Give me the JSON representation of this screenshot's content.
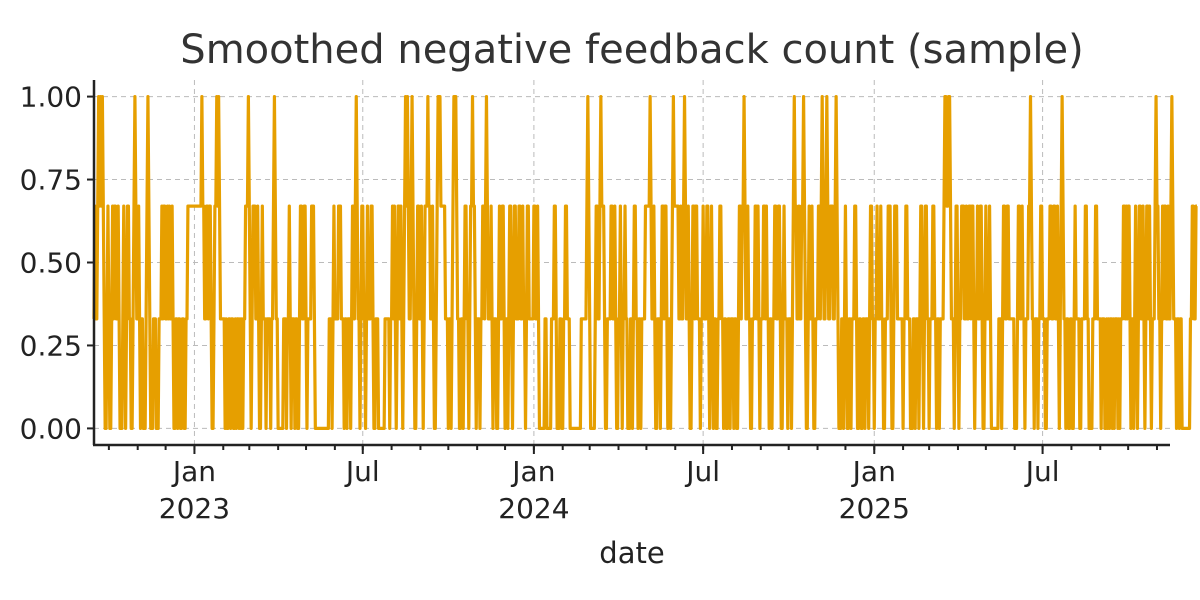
{
  "chart_data": {
    "type": "line",
    "title": "Smoothed negative feedback count (sample)",
    "xlabel": "date",
    "ylabel": "",
    "xlim": [
      "2022-09-15",
      "2025-11-15"
    ],
    "ylim": [
      -0.05,
      1.05
    ],
    "y_ticks": [
      0.0,
      0.25,
      0.5,
      0.75,
      1.0
    ],
    "y_tick_labels": [
      "0.00",
      "0.25",
      "0.50",
      "0.75",
      "1.00"
    ],
    "x_ticks": [
      {
        "date": "2023-01-01",
        "label": "Jan",
        "sublabel": "2023"
      },
      {
        "date": "2023-07-01",
        "label": "Jul",
        "sublabel": ""
      },
      {
        "date": "2024-01-01",
        "label": "Jan",
        "sublabel": "2024"
      },
      {
        "date": "2024-07-01",
        "label": "Jul",
        "sublabel": ""
      },
      {
        "date": "2025-01-01",
        "label": "Jan",
        "sublabel": "2025"
      },
      {
        "date": "2025-07-01",
        "label": "Jul",
        "sublabel": ""
      }
    ],
    "grid": true,
    "series": [
      {
        "name": "",
        "color": "#E69F00",
        "frequency": "daily",
        "start": "2022-09-15",
        "values": [
          0.33,
          0.67,
          0.33,
          0.33,
          0.67,
          1,
          0.67,
          1,
          0.67,
          1,
          0.67,
          0.33,
          0,
          0,
          0.33,
          0.67,
          0.33,
          0,
          0,
          0.33,
          0.67,
          0.33,
          0.67,
          0.67,
          0.33,
          0.33,
          0.67,
          0.33,
          0,
          0,
          0,
          0.33,
          0.67,
          0.33,
          0,
          0.33,
          0.67,
          0.67,
          0.33,
          0.33,
          0,
          0,
          0.33,
          0.67,
          1,
          0.67,
          0.33,
          0.33,
          0.67,
          0.33,
          0,
          0.33,
          0.33,
          0,
          0,
          0,
          0.33,
          0.67,
          1,
          0.67,
          0.33,
          0,
          0,
          0,
          0.33,
          0.33,
          0.33,
          0,
          0,
          0,
          0.33,
          0.33,
          0.33,
          0.67,
          0.33,
          0.67,
          0.67,
          0.33,
          0.33,
          0.67,
          0.33,
          0.67,
          0.33,
          0.33,
          0.67,
          0.33,
          0,
          0,
          0.33,
          0.33,
          0,
          0.33,
          0.33,
          0,
          0,
          0.33,
          0.33,
          0,
          0,
          0.33,
          0.33,
          0.67,
          0.67,
          0.67,
          0.67,
          0.67,
          0.67,
          0.67,
          0.67,
          0.67,
          0.67,
          0.67,
          0.67,
          0.67,
          0.67,
          0.67,
          1,
          0.67,
          0.67,
          0.33,
          0.33,
          0.67,
          0.67,
          0.33,
          0.67,
          0.67,
          0.33,
          0,
          0,
          0.33,
          0.67,
          0.67,
          1,
          0.67,
          1,
          0.67,
          0.33,
          0.33,
          0.33,
          0.33,
          0.33,
          0,
          0.33,
          0,
          0,
          0.33,
          0.33,
          0,
          0.33,
          0.33,
          0,
          0,
          0.33,
          0,
          0.33,
          0.33,
          0,
          0.33,
          0,
          0.33,
          0,
          0.33,
          0.33,
          0.67,
          0.67,
          0.67,
          1,
          0.67,
          0.33,
          0,
          0.33,
          0.67,
          0.67,
          0.67,
          0.33,
          0.33,
          0.67,
          0.33,
          0,
          0,
          0.33,
          0.67,
          0.33,
          0.33,
          0.33,
          0,
          0.33,
          0.33,
          0.33,
          0.33,
          0,
          0.33,
          0.33,
          0.67,
          1,
          0.67,
          0.33,
          0.33,
          0,
          0,
          0,
          0,
          0,
          0,
          0.33,
          0.33,
          0.33,
          0,
          0.33,
          0.33,
          0.67,
          0.33,
          0,
          0.33,
          0.33,
          0.33,
          0,
          0.33,
          0.33,
          0,
          0,
          0.33,
          0.67,
          0.67,
          0.33,
          0.33,
          0.67,
          0.67,
          0.33,
          0,
          0.33,
          0.33,
          0.33,
          0.33,
          0.67,
          0.67,
          0.67,
          0.33,
          0,
          0,
          0,
          0,
          0,
          0,
          0,
          0,
          0,
          0,
          0,
          0,
          0,
          0,
          0,
          0.33,
          0.33,
          0.33,
          0,
          0.33,
          0.67,
          0.33,
          0.33,
          0.33,
          0.33,
          0.67,
          0.67,
          0.67,
          0.33,
          0.33,
          0.33,
          0,
          0.33,
          0.33,
          0,
          0.33,
          0.33,
          0.33,
          0,
          0.33,
          0.67,
          0.67,
          0.33,
          0.67,
          1,
          0.67,
          0.33,
          0.33,
          0,
          0.33,
          0.67,
          0.67,
          0.33,
          0.33,
          0,
          0.33,
          0.67,
          0.33,
          0.33,
          0.33,
          0.67,
          0.67,
          0.33,
          0,
          0,
          0.33,
          0.33,
          0.33,
          0,
          0,
          0,
          0,
          0,
          0,
          0,
          0.33,
          0.33,
          0.33,
          0.33,
          0.33,
          0,
          0.33,
          0.33,
          0.67,
          0.33,
          0.67,
          0.33,
          0,
          0.33,
          0.67,
          0.67,
          0.33,
          0.67,
          0.33,
          0,
          0.33,
          0.67,
          1,
          0.67,
          1,
          0.67,
          0.33,
          0.33,
          0.67,
          1,
          0.67,
          0.33,
          0,
          0,
          0.33,
          0.67,
          0.67,
          0.33,
          0.33,
          0.67,
          0.33,
          0,
          0.33,
          0.67,
          0.67,
          0.67,
          1,
          0.67,
          0.67,
          0.33,
          0.33,
          0.67,
          0.33,
          0,
          0,
          0.33,
          0.67,
          1,
          1,
          1,
          0.67,
          0.67,
          0.67,
          0.67,
          0.67,
          0.33,
          0.33,
          0.33,
          0,
          0.33,
          0.33,
          0,
          0.33,
          0.67,
          1,
          1,
          1,
          0.67,
          0.33,
          0.33,
          0,
          0,
          0.33,
          0.33,
          0,
          0.33,
          0.67,
          0.67,
          0.33,
          0.33,
          0,
          0.33,
          0.67,
          0.67,
          1,
          0.67,
          0.67,
          0.33,
          0,
          0.33,
          0.33,
          0.33,
          0,
          0.33,
          0.33,
          0.67,
          0.67,
          0.33,
          0.67,
          1,
          0.67,
          0.33,
          0.33,
          0.33,
          0.67,
          0.33,
          0,
          0.33,
          0.33,
          0.33,
          0,
          0,
          0.33,
          0.67,
          0.33,
          0.33,
          0.67,
          0.67,
          0.33,
          0,
          0.33,
          0.33,
          0,
          0.33,
          0.67,
          0.67,
          0.33,
          0,
          0.33,
          0.67,
          0.67,
          0.33,
          0.33,
          0.33,
          0.67,
          0.67,
          0.33,
          0.33,
          0.67,
          0.33,
          0.33,
          0,
          0.33,
          0.67,
          0.67,
          0.33,
          0.33,
          0.33,
          0.33,
          0.33,
          0.67,
          0.67,
          0.33,
          0.33,
          0.67,
          0.33,
          0,
          0,
          0,
          0,
          0,
          0,
          0.33,
          0.33,
          0,
          0,
          0,
          0,
          0,
          0.33,
          0.33,
          0.33,
          0.67,
          0.67,
          0.33,
          0,
          0,
          0,
          0.33,
          0.33,
          0,
          0,
          0.33,
          0.33,
          0.67,
          0.67,
          0.33,
          0.33,
          0.33,
          0,
          0,
          0,
          0,
          0,
          0,
          0,
          0,
          0,
          0,
          0,
          0,
          0.33,
          0.33,
          0.33,
          0.33,
          0.33,
          0.33,
          0.67,
          1,
          0.67,
          0.33,
          0,
          0,
          0,
          0,
          0,
          0.33,
          0.67,
          0.67,
          0.33,
          0.33,
          0.67,
          1,
          0.67,
          0.67,
          0.67,
          0.33,
          0,
          0,
          0.33,
          0.33,
          0.33,
          0.33,
          0.67,
          0.67,
          0.33,
          0.33,
          0.67,
          0.33,
          0,
          0,
          0.33,
          0.33,
          0.67,
          0.33,
          0,
          0.33,
          0.33,
          0.67,
          0.33,
          0.33,
          0,
          0,
          0,
          0.33,
          0.33,
          0,
          0.33,
          0.67,
          0.67,
          0.33,
          0.33,
          0,
          0.33,
          0.33,
          0,
          0.33,
          0.33,
          0.33,
          0.33,
          0.67,
          0.67,
          0.67,
          0.67,
          0.67,
          1,
          0.67,
          0.33,
          0.33,
          0.67,
          0.33,
          0,
          0,
          0.33,
          0.33,
          0.33,
          0,
          0.33,
          0.67,
          0.67,
          0.33,
          0.67,
          0.67,
          0.33,
          0,
          0.33,
          0.33,
          0,
          0.33,
          0.67,
          1,
          0.67,
          0.67,
          0.67,
          0.67,
          0.67,
          0.33,
          0.33,
          0.67,
          0.33,
          0.33,
          0.67,
          1,
          0.67,
          0.33,
          0.33,
          0.67,
          0.33,
          0,
          0,
          0.33,
          0.67,
          0.67,
          0.33,
          0.67,
          0.67,
          0.33,
          0.33,
          0.33,
          0,
          0.33,
          0.33,
          0.67,
          0.33,
          0.33,
          0.33,
          0.67,
          0.67,
          0.33,
          0,
          0.33,
          0.67,
          0.33,
          0,
          0.33,
          0.33,
          0,
          0,
          0.33,
          0.33,
          0.67,
          0.67,
          0.33,
          0.33,
          0,
          0.33,
          0.33,
          0,
          0,
          0.33,
          0.33,
          0,
          0.33,
          0.33,
          0.33,
          0,
          0.33,
          0.33,
          0,
          0,
          0.33,
          0.67,
          0.67,
          0.33,
          0.67,
          0.67,
          1,
          0.67,
          0.33,
          0.33,
          0.67,
          0.33,
          0.33,
          0,
          0,
          0.33,
          0.33,
          0.33,
          0.67,
          0.67,
          0.33,
          0.67,
          0.33,
          0,
          0.33,
          0.33,
          0.33,
          0.67,
          0.67,
          0.33,
          0.67,
          0.33,
          0.33,
          0,
          0.33,
          0.33,
          0,
          0.33,
          0.33,
          0.67,
          0.67,
          0.33,
          0.33,
          0.67,
          0.67,
          0.33,
          0,
          0,
          0.33,
          0.67,
          0.33,
          0.33,
          0.33,
          0,
          0.33,
          0.33,
          0.33,
          0,
          0.33,
          0.67,
          1,
          0.67,
          0.67,
          0.33,
          0.33,
          0.67,
          0.33,
          0.33,
          0.67,
          0.67,
          1,
          0.67,
          0.33,
          0,
          0,
          0.33,
          0.67,
          0.33,
          0.33,
          0.67,
          0.33,
          0,
          0,
          0.33,
          0.33,
          0.33,
          0.67,
          0.67,
          0.33,
          0.67,
          1,
          0.67,
          0.33,
          0.33,
          0.67,
          1,
          0.67,
          0.33,
          0.33,
          0.67,
          0.67,
          0.67,
          0.33,
          0.33,
          0.67,
          1,
          0.67,
          0.33,
          0,
          0,
          0,
          0.33,
          0.33,
          0,
          0.33,
          0.67,
          0.33,
          0,
          0,
          0.33,
          0.33,
          0,
          0.33,
          0.33,
          0.33,
          0.67,
          0.67,
          0.33,
          0,
          0,
          0.33,
          0.33,
          0,
          0,
          0.33,
          0.33,
          0,
          0.33,
          0.33,
          0.33,
          0,
          0.33,
          0.67,
          0.67,
          0.33,
          0.33,
          0,
          0.33,
          0.33,
          0.67,
          0.33,
          0.33,
          0.33,
          0.67,
          0.33,
          0.33,
          0,
          0,
          0.33,
          0.33,
          0.33,
          0.67,
          0.67,
          0.67,
          0.33,
          0,
          0,
          0.33,
          0.67,
          0.67,
          0.67,
          0.33,
          0.33,
          0.33,
          0.33,
          0.33,
          0.33,
          0,
          0.33,
          0.33,
          0.67,
          0.67,
          0.33,
          0.33,
          0.33,
          0,
          0,
          0,
          0.33,
          0.33,
          0,
          0.33,
          0.33,
          0.33,
          0,
          0.33,
          0.67,
          0.67,
          0.33,
          0,
          0.33,
          0.67,
          0.67,
          0.33,
          0.33,
          0,
          0.33,
          0.33,
          0.33,
          0.67,
          0.67,
          0.33,
          0.33,
          0,
          0.33,
          0.33,
          0,
          0.33,
          0.33,
          0.33,
          0.33,
          0.67,
          1,
          1,
          0.67,
          0.67,
          1,
          1,
          0.67,
          0.33,
          0.33,
          0.33,
          0,
          0.33,
          0.67,
          0.67,
          0.33,
          0,
          0.33,
          0.33,
          0.67,
          0.67,
          0.67,
          0.33,
          0.33,
          0.67,
          0.33,
          0.33,
          0.67,
          0.67,
          0.33,
          0.67,
          0.67,
          0.33,
          0,
          0.33,
          0.33,
          0.67,
          0.33,
          0.33,
          0.67,
          0.67,
          0.33,
          0,
          0,
          0.33,
          0.67,
          0.33,
          0.33,
          0.33,
          0.67,
          0.33,
          0,
          0,
          0,
          0,
          0,
          0,
          0,
          0,
          0.33,
          0.33,
          0.33,
          0,
          0.33,
          0.67,
          0.67,
          0.33,
          0.33,
          0.67,
          0.67,
          0.33,
          0.33,
          0.33,
          0.33,
          0.33,
          0.33,
          0,
          0,
          0,
          0.33,
          0.67,
          0.67,
          0.33,
          0.33,
          0.67,
          0.33,
          0.33,
          0,
          0.33,
          0.33,
          0.33,
          0.67,
          0.67,
          1,
          0.67,
          0.33,
          0.33,
          0,
          0.33,
          0.33,
          0.33,
          0,
          0.33,
          0.33,
          0.67,
          0.67,
          0.33,
          0.33,
          0.33,
          0,
          0,
          0.33,
          0.33,
          0.33,
          0.67,
          0.67,
          0.33,
          0.33,
          0.67,
          0.67,
          0.33,
          0.33,
          0.67,
          0.33,
          0,
          0.33,
          0.67,
          1,
          0.67,
          0.33,
          0.33,
          0,
          0.33,
          0.33,
          0,
          0,
          0.33,
          0.33,
          0,
          0,
          0.33,
          0.67,
          0.33,
          0.33,
          0.33,
          0.33,
          0,
          0,
          0.33,
          0.33,
          0.33,
          0.33,
          0.67,
          0.67,
          0.33,
          0.33,
          0,
          0,
          0,
          0,
          0.33,
          0.33,
          0.33,
          0.67,
          0.67,
          0.33,
          0.33,
          0.33,
          0.33,
          0,
          0.33,
          0.33,
          0.33,
          0,
          0,
          0.33,
          0,
          0.33,
          0,
          0.33,
          0.33,
          0,
          0.33,
          0,
          0.33,
          0.33,
          0.33,
          0,
          0.33,
          0,
          0.33,
          0.33,
          0.33,
          0.67,
          0.67,
          0.33,
          0.67,
          0.33,
          0.67,
          0.67,
          0.33,
          0,
          0.33,
          0.33,
          0,
          0.33,
          0.67,
          0.33,
          0,
          0.33,
          0.67,
          0.67,
          0.33,
          0.33,
          0.67,
          0.33,
          0,
          0.33,
          0.67,
          0.67,
          0.33,
          0.67,
          0.33,
          0,
          0.33,
          0.33,
          0.33,
          0.67,
          1,
          0.67,
          0.67,
          0.33,
          0.33,
          0,
          0.33,
          0.67,
          0.33,
          0.67,
          0.67,
          0.33,
          0.33,
          0.67,
          0.33,
          0.33,
          0.67,
          1,
          0.67,
          0.33,
          0.33,
          0.33,
          0,
          0.33,
          0.33,
          0,
          0.33,
          0.33,
          0,
          0,
          0,
          0,
          0,
          0,
          0,
          0,
          0,
          0.33,
          0.33,
          0.67,
          0.67,
          0.33,
          0.33,
          0.67,
          0.67
        ]
      }
    ]
  }
}
